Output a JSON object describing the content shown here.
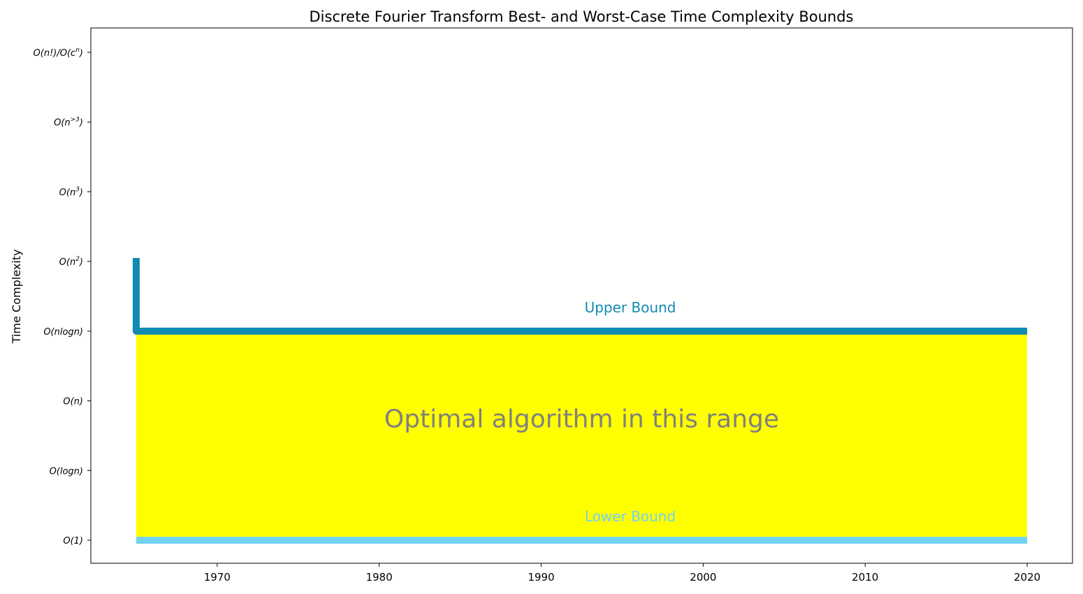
{
  "chart_data": {
    "type": "line",
    "title": "Discrete Fourier Transform Best- and Worst-Case Time Complexity Bounds",
    "xlabel": "",
    "ylabel": "Time Complexity",
    "xlim": [
      1962.2,
      2022.8
    ],
    "ylim": [
      -0.33,
      7.35
    ],
    "x_ticks": [
      1970,
      1980,
      1990,
      2000,
      2010,
      2020
    ],
    "y_ticks": [
      {
        "value": 0,
        "base": "O(1)",
        "sup": ""
      },
      {
        "value": 1,
        "base": "O(logn)",
        "sup": ""
      },
      {
        "value": 2,
        "base": "O(n)",
        "sup": ""
      },
      {
        "value": 3,
        "base": "O(nlogn)",
        "sup": ""
      },
      {
        "value": 4,
        "base": "O(n",
        "sup": "2",
        "tail": ")"
      },
      {
        "value": 5,
        "base": "O(n",
        "sup": "3",
        "tail": ")"
      },
      {
        "value": 6,
        "base": "O(n",
        "sup": ">3",
        "tail": ")"
      },
      {
        "value": 7,
        "base": "O(n!)/O(c",
        "sup": "n",
        "tail": ")"
      }
    ],
    "series": [
      {
        "label": "Upper Bound",
        "color": "#118ab2",
        "points": [
          [
            1965,
            4.05
          ],
          [
            1965,
            3.0
          ],
          [
            2020,
            3.0
          ]
        ]
      },
      {
        "label": "Lower Bound",
        "color": "#73d2f3",
        "points": [
          [
            1965,
            0.0
          ],
          [
            2020,
            0.0
          ]
        ]
      }
    ],
    "fill_between": {
      "x": [
        1965,
        2020
      ],
      "y_low": 0,
      "y_high": 3,
      "color": "#ffff00"
    },
    "annotation": {
      "text": "Optimal algorithm in this range",
      "x": 1992.5,
      "y": 1.62
    },
    "bound_label_pos": {
      "upper": {
        "x": 1995.5,
        "y": 3.27
      },
      "lower": {
        "x": 1995.5,
        "y": 0.27
      }
    },
    "grid": false
  }
}
